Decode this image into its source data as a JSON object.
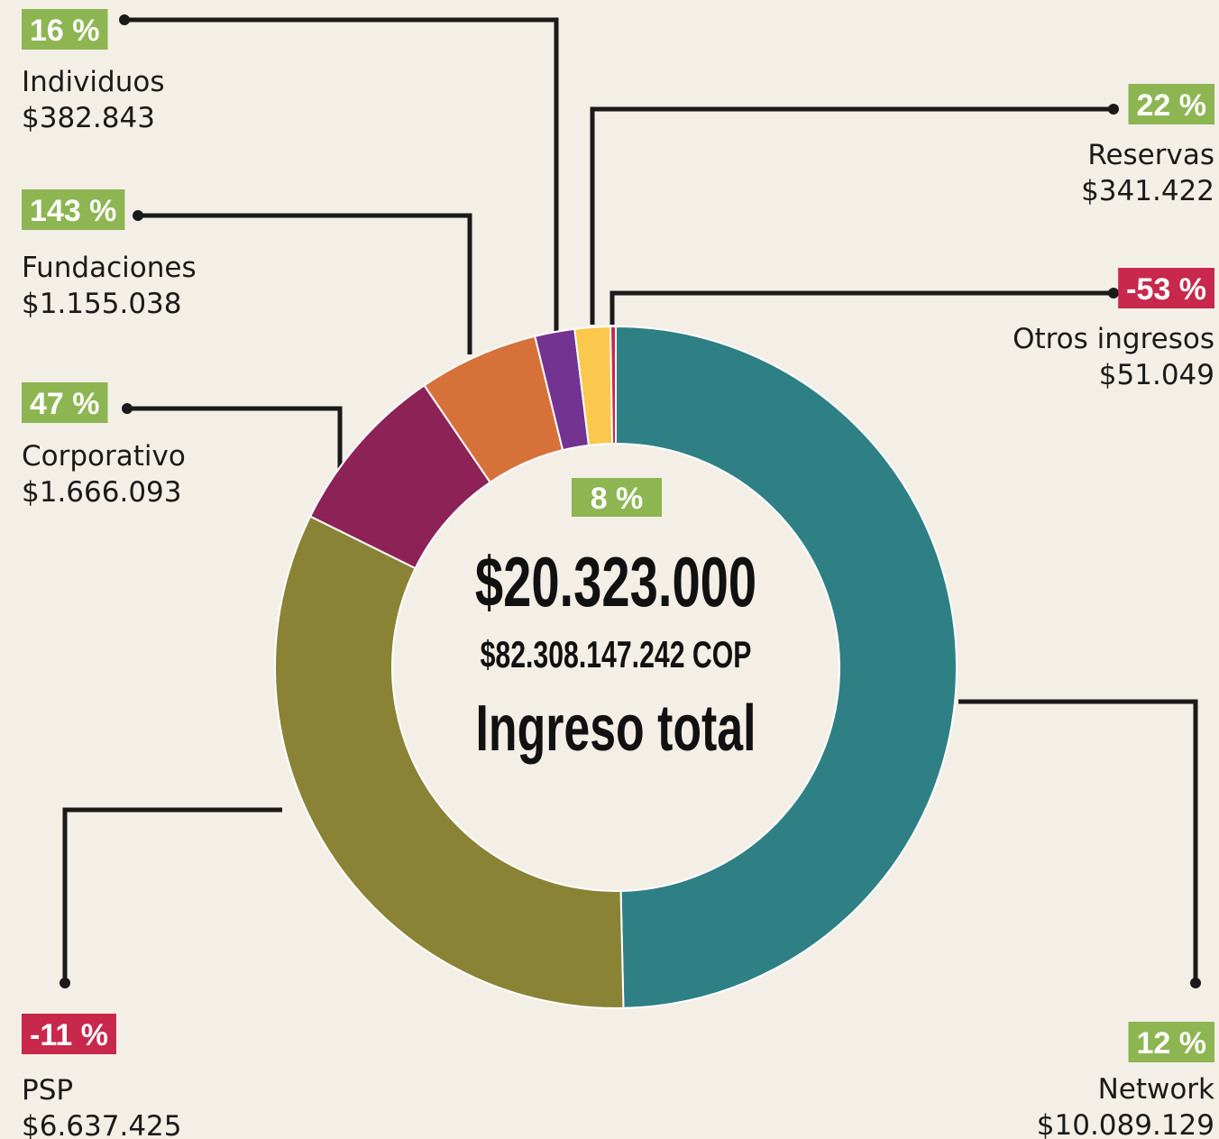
{
  "chart_data": {
    "type": "donut",
    "categories": [
      "Network",
      "PSP",
      "Corporativo",
      "Fundaciones",
      "Individuos",
      "Reservas",
      "Otros ingresos"
    ],
    "values": [
      10089129,
      6637425,
      1666093,
      1155038,
      382843,
      341422,
      51049
    ],
    "value_labels": [
      "$10.089.129",
      "$6.637.425",
      "$1.666.093",
      "$1.155.038",
      "$382.843",
      "$341.422",
      "$51.049"
    ],
    "colors": [
      "#2e8085",
      "#8a8335",
      "#8d2257",
      "#d7713a",
      "#733391",
      "#f9c84c",
      "#c8284b"
    ],
    "changes": [
      {
        "value": 12,
        "label": "12 %"
      },
      {
        "value": -11,
        "label": "-11 %"
      },
      {
        "value": 47,
        "label": "47 %"
      },
      {
        "value": 143,
        "label": "143 %"
      },
      {
        "value": 16,
        "label": "16 %"
      },
      {
        "value": 22,
        "label": "22 %"
      },
      {
        "value": -53,
        "label": "-53 %"
      }
    ],
    "positive_color": "#8db552",
    "negative_color": "#c8284b",
    "center": {
      "change": {
        "value": 8,
        "label": "8 %"
      },
      "total": {
        "value": 20323000,
        "label": "$20.323.000"
      },
      "total_cop": {
        "value": 82308147242,
        "label": "$82.308.147.242 COP"
      },
      "title": "Ingreso total"
    }
  }
}
